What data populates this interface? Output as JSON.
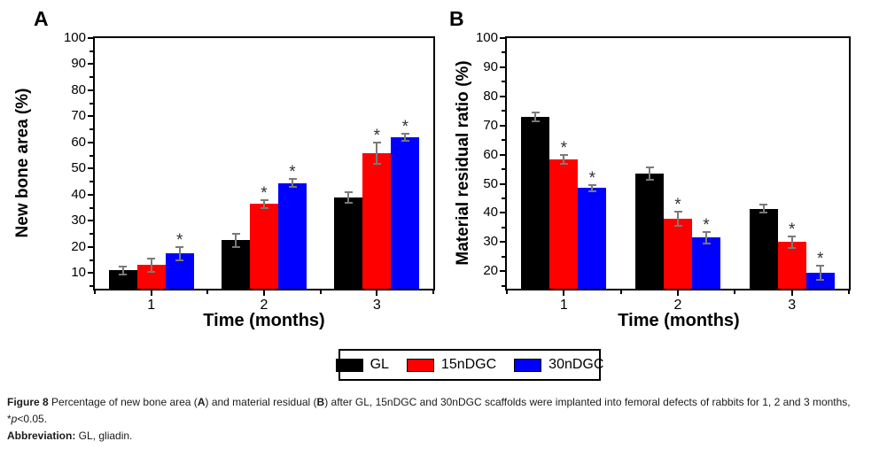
{
  "figure": {
    "sig_marker": "*"
  },
  "chart_data": [
    {
      "type": "bar",
      "panel_label": "A",
      "title": "",
      "xlabel": "Time (months)",
      "ylabel": "New bone area (%)",
      "categories": [
        "1",
        "2",
        "3"
      ],
      "ylim": [
        4,
        100
      ],
      "yticks": [
        10,
        20,
        30,
        40,
        50,
        60,
        70,
        80,
        90,
        100
      ],
      "grid": false,
      "legend_position": "bottom-center",
      "series": [
        {
          "name": "GL",
          "color": "#000000",
          "values": [
            11,
            22.5,
            39
          ],
          "errors": [
            1.5,
            2.5,
            2
          ],
          "significant": [
            false,
            false,
            false
          ]
        },
        {
          "name": "15nDGC",
          "color": "#ff0000",
          "values": [
            13,
            36.5,
            56
          ],
          "errors": [
            2.5,
            1.5,
            4
          ],
          "significant": [
            false,
            true,
            true
          ]
        },
        {
          "name": "30nDGC",
          "color": "#0000ff",
          "values": [
            17.5,
            44.5,
            62
          ],
          "errors": [
            2.5,
            1.5,
            1.5
          ],
          "significant": [
            true,
            true,
            true
          ]
        }
      ]
    },
    {
      "type": "bar",
      "panel_label": "B",
      "title": "",
      "xlabel": "Time (months)",
      "ylabel": "Material residual ratio (%)",
      "categories": [
        "1",
        "2",
        "3"
      ],
      "ylim": [
        14,
        100
      ],
      "yticks": [
        20,
        30,
        40,
        50,
        60,
        70,
        80,
        90,
        100
      ],
      "grid": false,
      "legend_position": "bottom-center",
      "series": [
        {
          "name": "GL",
          "color": "#000000",
          "values": [
            73,
            53.5,
            41.5
          ],
          "errors": [
            1.5,
            2,
            1.5
          ],
          "significant": [
            false,
            false,
            false
          ]
        },
        {
          "name": "15nDGC",
          "color": "#ff0000",
          "values": [
            58.5,
            38,
            30
          ],
          "errors": [
            1.5,
            2.5,
            2
          ],
          "significant": [
            true,
            true,
            true
          ]
        },
        {
          "name": "30nDGC",
          "color": "#0000ff",
          "values": [
            48.5,
            31.5,
            19.5
          ],
          "errors": [
            1,
            2,
            2.5
          ],
          "significant": [
            true,
            true,
            true
          ]
        }
      ]
    }
  ],
  "legend": {
    "items": [
      {
        "label": "GL",
        "color": "#000000"
      },
      {
        "label": "15nDGC",
        "color": "#ff0000"
      },
      {
        "label": "30nDGC",
        "color": "#0000ff"
      }
    ]
  },
  "caption": {
    "fig_label": "Figure 8",
    "body_1": " Percentage of new bone area (",
    "bold_a": "A",
    "body_2": ") and material residual (",
    "bold_b": "B",
    "body_3": ") after GL, 15nDGC and 30nDGC scaffolds were implanted into femoral defects of rabbits for 1, 2 and 3 months, *",
    "p_italic": "p",
    "body_4": "<0.05.",
    "abbrev_label": "Abbreviation:",
    "abbrev_text": " GL, gliadin."
  }
}
